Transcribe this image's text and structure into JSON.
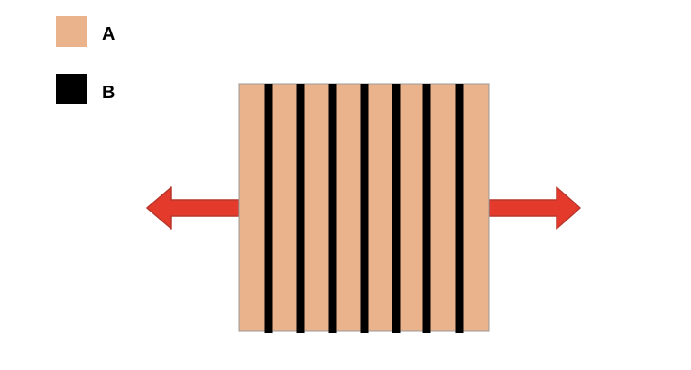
{
  "legend": {
    "items": [
      {
        "label": "A",
        "color": "#EBB38C"
      },
      {
        "label": "B",
        "color": "#000000"
      }
    ]
  },
  "diagram": {
    "block_color": "#EBB38C",
    "block_border_color": "#999999",
    "layer_color": "#000000",
    "layer_count": 7,
    "arrow_color": "#E43A2C",
    "arrow_border_color": "#B9372B",
    "arrows": [
      {
        "direction": "left"
      },
      {
        "direction": "right"
      }
    ]
  }
}
